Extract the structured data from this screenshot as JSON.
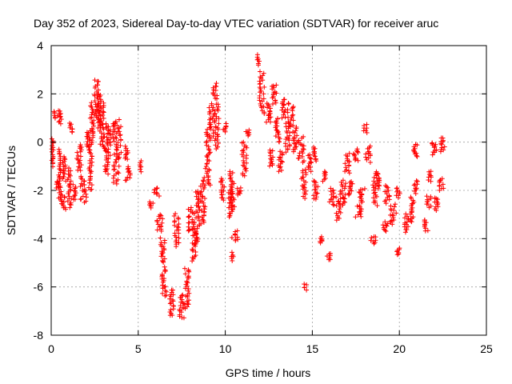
{
  "chart_data": {
    "type": "scatter",
    "title": "Day 352 of 2023, Sidereal Day-to-day VTEC variation (SDTVAR) for receiver aruc",
    "xlabel": "GPS time / hours",
    "ylabel": "SDTVAR / TECUs",
    "xlim": [
      0,
      25
    ],
    "ylim": [
      -8,
      4
    ],
    "xticks": [
      0,
      5,
      10,
      15,
      20,
      25
    ],
    "yticks": [
      -8,
      -6,
      -4,
      -2,
      0,
      2,
      4
    ],
    "grid": true,
    "marker": "+",
    "color": "#ff0000",
    "series": [
      {
        "name": "SDTVAR",
        "clusters": [
          [
            0.0,
            0.15,
            -1.0,
            0.15
          ],
          [
            0.15,
            0.5,
            -1.9,
            -1.6
          ],
          [
            0.1,
            0.3,
            1.0,
            1.3
          ],
          [
            0.3,
            0.7,
            0.8,
            1.3
          ],
          [
            0.4,
            0.6,
            -2.4,
            -0.3
          ],
          [
            0.5,
            0.9,
            -2.8,
            -2.2
          ],
          [
            0.6,
            0.9,
            -1.6,
            -0.6
          ],
          [
            0.9,
            1.2,
            -2.7,
            -1.1
          ],
          [
            1.0,
            1.3,
            0.4,
            0.8
          ],
          [
            1.2,
            1.5,
            -2.4,
            -1.8
          ],
          [
            1.4,
            1.8,
            -1.2,
            -0.1
          ],
          [
            1.6,
            2.1,
            -2.5,
            -1.4
          ],
          [
            2.0,
            2.3,
            -0.3,
            0.5
          ],
          [
            2.1,
            2.4,
            -2.0,
            0.2
          ],
          [
            2.2,
            2.5,
            0.2,
            1.6
          ],
          [
            2.4,
            2.8,
            1.0,
            2.6
          ],
          [
            2.6,
            2.9,
            0.6,
            2.0
          ],
          [
            2.7,
            3.1,
            -0.2,
            1.6
          ],
          [
            2.9,
            3.4,
            -0.4,
            0.8
          ],
          [
            3.0,
            3.5,
            -1.3,
            -0.3
          ],
          [
            3.3,
            3.8,
            -0.1,
            0.8
          ],
          [
            3.5,
            4.0,
            -1.7,
            -0.5
          ],
          [
            3.6,
            4.1,
            -0.6,
            0.9
          ],
          [
            4.2,
            4.5,
            -0.7,
            -0.2
          ],
          [
            4.2,
            4.6,
            -1.6,
            -1.0
          ],
          [
            5.0,
            5.2,
            -1.2,
            -0.8
          ],
          [
            5.6,
            5.9,
            -2.7,
            -2.5
          ],
          [
            5.8,
            6.3,
            -2.2,
            -1.9
          ],
          [
            6.0,
            6.5,
            -3.7,
            -3.0
          ],
          [
            6.2,
            6.6,
            -5.0,
            -4.0
          ],
          [
            6.3,
            6.7,
            -6.4,
            -5.2
          ],
          [
            6.7,
            7.1,
            -7.2,
            -6.1
          ],
          [
            7.0,
            7.4,
            -4.3,
            -3.0
          ],
          [
            7.3,
            7.7,
            -7.3,
            -6.3
          ],
          [
            7.6,
            8.0,
            -6.9,
            -5.2
          ],
          [
            7.8,
            8.3,
            -3.7,
            -2.7
          ],
          [
            8.0,
            8.4,
            -4.9,
            -3.6
          ],
          [
            8.1,
            8.6,
            -4.2,
            -2.0
          ],
          [
            8.5,
            8.9,
            -3.4,
            -1.5
          ],
          [
            8.8,
            9.2,
            -1.8,
            0.5
          ],
          [
            9.0,
            9.4,
            0.2,
            1.6
          ],
          [
            9.2,
            9.6,
            1.8,
            2.4
          ],
          [
            9.3,
            9.7,
            -0.3,
            1.6
          ],
          [
            9.7,
            10.0,
            -2.4,
            -1.5
          ],
          [
            9.8,
            10.1,
            0.4,
            0.8
          ],
          [
            10.1,
            10.5,
            -3.1,
            -2.0
          ],
          [
            10.2,
            10.6,
            -2.8,
            -1.2
          ],
          [
            10.3,
            10.5,
            -4.9,
            -4.6
          ],
          [
            10.3,
            10.8,
            -4.1,
            -3.7
          ],
          [
            10.6,
            11.0,
            -2.2,
            -1.9
          ],
          [
            10.9,
            11.3,
            -1.4,
            0.0
          ],
          [
            11.1,
            11.5,
            0.3,
            0.5
          ],
          [
            11.8,
            12.0,
            3.2,
            3.6
          ],
          [
            11.9,
            12.3,
            1.2,
            2.9
          ],
          [
            12.3,
            12.7,
            0.8,
            1.6
          ],
          [
            12.5,
            12.8,
            -1.0,
            -0.3
          ],
          [
            12.6,
            13.0,
            1.6,
            2.4
          ],
          [
            12.8,
            13.2,
            0.0,
            1.0
          ],
          [
            13.0,
            13.4,
            -1.2,
            -0.4
          ],
          [
            13.2,
            13.5,
            1.0,
            1.8
          ],
          [
            13.4,
            13.8,
            -0.4,
            0.8
          ],
          [
            13.5,
            14.0,
            0.6,
            1.6
          ],
          [
            13.8,
            14.2,
            -0.4,
            0.6
          ],
          [
            14.1,
            14.6,
            -0.8,
            0.2
          ],
          [
            14.3,
            14.7,
            -2.3,
            -1.1
          ],
          [
            14.5,
            14.7,
            -6.1,
            -5.9
          ],
          [
            14.7,
            15.0,
            -1.2,
            -0.5
          ],
          [
            15.0,
            15.3,
            -0.8,
            -0.2
          ],
          [
            15.0,
            15.4,
            -2.4,
            -1.6
          ],
          [
            15.3,
            15.6,
            -4.2,
            -3.9
          ],
          [
            15.5,
            15.8,
            -1.6,
            -1.2
          ],
          [
            15.8,
            16.1,
            -4.9,
            -4.6
          ],
          [
            15.9,
            16.3,
            -2.6,
            -1.9
          ],
          [
            16.3,
            16.7,
            -3.2,
            -2.3
          ],
          [
            16.5,
            17.0,
            -2.6,
            -1.6
          ],
          [
            16.8,
            17.2,
            -1.3,
            -0.5
          ],
          [
            17.0,
            17.4,
            -2.2,
            -1.6
          ],
          [
            17.3,
            17.7,
            -0.8,
            -0.3
          ],
          [
            17.4,
            17.9,
            -3.1,
            -2.6
          ],
          [
            17.6,
            18.1,
            -2.5,
            -1.9
          ],
          [
            17.9,
            18.2,
            0.4,
            0.7
          ],
          [
            18.0,
            18.4,
            -0.8,
            -0.2
          ],
          [
            18.3,
            18.7,
            -4.2,
            -3.9
          ],
          [
            18.4,
            18.8,
            -2.6,
            -1.2
          ],
          [
            18.6,
            19.0,
            -1.9,
            -1.3
          ],
          [
            19.0,
            19.4,
            -3.7,
            -3.3
          ],
          [
            19.1,
            19.5,
            -2.5,
            -1.8
          ],
          [
            19.4,
            19.9,
            -3.4,
            -2.6
          ],
          [
            19.7,
            20.1,
            -2.3,
            -1.9
          ],
          [
            19.8,
            20.1,
            -4.7,
            -4.4
          ],
          [
            20.2,
            20.6,
            -3.7,
            -3.0
          ],
          [
            20.5,
            20.9,
            -3.3,
            -2.3
          ],
          [
            20.7,
            21.1,
            -0.6,
            -0.1
          ],
          [
            20.8,
            21.1,
            -2.1,
            -1.6
          ],
          [
            21.4,
            21.7,
            -3.7,
            -3.2
          ],
          [
            21.5,
            21.9,
            -2.7,
            -2.2
          ],
          [
            21.6,
            21.9,
            -1.6,
            -1.2
          ],
          [
            21.8,
            22.2,
            -0.5,
            0.0
          ],
          [
            21.9,
            22.3,
            -2.8,
            -2.3
          ],
          [
            22.2,
            22.6,
            -2.0,
            -1.5
          ],
          [
            22.3,
            22.7,
            -0.4,
            0.2
          ]
        ]
      }
    ]
  }
}
